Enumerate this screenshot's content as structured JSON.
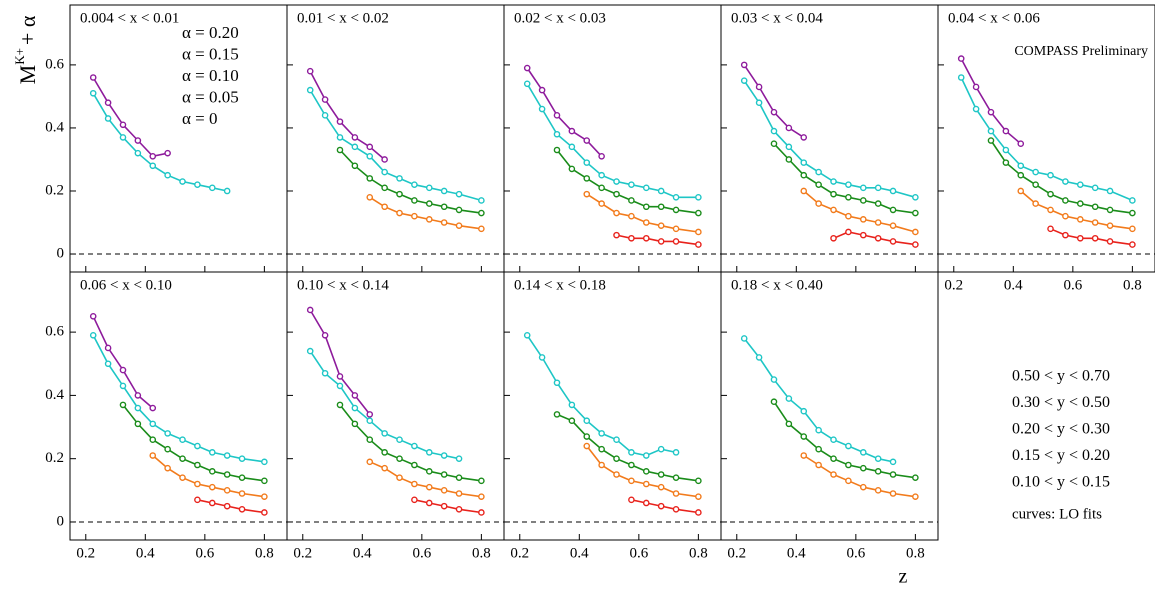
{
  "chart_data": {
    "type": "scatter",
    "ylabel": [
      "M",
      "K+",
      "+ α"
    ],
    "xlabel": "z",
    "note": "COMPASS Preliminary",
    "fit_note": "curves: LO fits",
    "x": [
      0.225,
      0.275,
      0.325,
      0.375,
      0.425,
      0.475,
      0.525,
      0.575,
      0.625,
      0.675,
      0.725,
      0.8
    ],
    "xlim": [
      0.147,
      0.876
    ],
    "ylim": [
      -0.057,
      0.79
    ],
    "xticks": [
      0.2,
      0.4,
      0.6,
      0.8
    ],
    "yticks": [
      0,
      0.2,
      0.4,
      0.6
    ],
    "reference_line": 0,
    "series": [
      {
        "name": "α = 0.20",
        "label": "0.50 < y < 0.70",
        "color": "#8e1b9c"
      },
      {
        "name": "α = 0.15",
        "label": "0.30 < y < 0.50",
        "color": "#1ec6c6"
      },
      {
        "name": "α = 0.10",
        "label": "0.20 < y < 0.30",
        "color": "#1a8c1a"
      },
      {
        "name": "α = 0.05",
        "label": "0.15 < y < 0.20",
        "color": "#f27b1c"
      },
      {
        "name": "α = 0",
        "label": "0.10 < y < 0.15",
        "color": "#e8221c"
      }
    ],
    "panels": [
      {
        "title": "0.004 < x < 0.01",
        "values": [
          [
            0.56,
            0.48,
            0.41,
            0.36,
            0.31,
            0.32,
            null,
            null,
            null,
            null,
            null,
            null
          ],
          [
            0.51,
            0.43,
            0.37,
            0.32,
            0.28,
            0.25,
            0.23,
            0.22,
            0.21,
            0.2,
            null,
            null
          ],
          [
            null,
            null,
            null,
            null,
            null,
            null,
            null,
            null,
            null,
            null,
            null,
            null
          ],
          [
            null,
            null,
            null,
            null,
            null,
            null,
            null,
            null,
            null,
            null,
            null,
            null
          ],
          [
            null,
            null,
            null,
            null,
            null,
            null,
            null,
            null,
            null,
            null,
            null,
            null
          ]
        ]
      },
      {
        "title": "0.01 < x < 0.02",
        "values": [
          [
            0.58,
            0.49,
            0.42,
            0.37,
            0.34,
            0.3,
            null,
            null,
            null,
            null,
            null,
            null
          ],
          [
            0.52,
            0.44,
            0.37,
            0.34,
            0.31,
            0.26,
            0.24,
            0.22,
            0.21,
            0.2,
            0.19,
            0.17
          ],
          [
            null,
            null,
            0.33,
            0.28,
            0.24,
            0.21,
            0.19,
            0.17,
            0.16,
            0.15,
            0.14,
            0.13
          ],
          [
            null,
            null,
            null,
            null,
            0.18,
            0.15,
            0.13,
            0.12,
            0.11,
            0.1,
            0.09,
            0.08
          ],
          [
            null,
            null,
            null,
            null,
            null,
            null,
            null,
            null,
            null,
            null,
            null,
            null
          ]
        ]
      },
      {
        "title": "0.02 < x < 0.03",
        "values": [
          [
            0.59,
            0.52,
            0.44,
            0.39,
            0.36,
            0.31,
            null,
            null,
            null,
            null,
            null,
            null
          ],
          [
            0.54,
            0.46,
            0.38,
            0.34,
            0.29,
            0.25,
            0.23,
            0.22,
            0.21,
            0.2,
            0.18,
            0.18
          ],
          [
            null,
            null,
            0.33,
            0.27,
            0.24,
            0.21,
            0.19,
            0.17,
            0.15,
            0.15,
            0.14,
            0.13
          ],
          [
            null,
            null,
            null,
            null,
            0.19,
            0.16,
            0.13,
            0.12,
            0.1,
            0.09,
            0.08,
            0.07
          ],
          [
            null,
            null,
            null,
            null,
            null,
            null,
            0.06,
            0.05,
            0.05,
            0.04,
            0.04,
            0.03
          ]
        ]
      },
      {
        "title": "0.03 < x < 0.04",
        "values": [
          [
            0.6,
            0.53,
            0.45,
            0.4,
            0.37,
            null,
            null,
            null,
            null,
            null,
            null,
            null
          ],
          [
            0.55,
            0.48,
            0.39,
            0.34,
            0.29,
            0.26,
            0.23,
            0.22,
            0.21,
            0.21,
            0.2,
            0.18
          ],
          [
            null,
            null,
            0.35,
            0.3,
            0.25,
            0.22,
            0.19,
            0.18,
            0.17,
            0.16,
            0.14,
            0.13
          ],
          [
            null,
            null,
            null,
            null,
            0.2,
            0.16,
            0.14,
            0.12,
            0.11,
            0.1,
            0.09,
            0.07
          ],
          [
            null,
            null,
            null,
            null,
            null,
            null,
            0.05,
            0.07,
            0.06,
            0.05,
            0.04,
            0.03
          ]
        ]
      },
      {
        "title": "0.04 < x < 0.06",
        "values": [
          [
            0.62,
            0.53,
            0.45,
            0.39,
            0.35,
            null,
            null,
            null,
            null,
            null,
            null,
            null
          ],
          [
            0.56,
            0.46,
            0.39,
            0.33,
            0.28,
            0.26,
            0.25,
            0.23,
            0.22,
            0.21,
            0.2,
            0.17
          ],
          [
            null,
            null,
            0.36,
            0.29,
            0.25,
            0.22,
            0.19,
            0.17,
            0.16,
            0.15,
            0.14,
            0.13
          ],
          [
            null,
            null,
            null,
            null,
            0.2,
            0.16,
            0.14,
            0.12,
            0.11,
            0.1,
            0.09,
            0.08
          ],
          [
            null,
            null,
            null,
            null,
            null,
            null,
            0.08,
            0.06,
            0.05,
            0.05,
            0.04,
            0.03
          ]
        ]
      },
      {
        "title": "0.06 < x < 0.10",
        "values": [
          [
            0.65,
            0.55,
            0.48,
            0.4,
            0.36,
            null,
            null,
            null,
            null,
            null,
            null,
            null
          ],
          [
            0.59,
            0.5,
            0.43,
            0.36,
            0.31,
            0.28,
            0.26,
            0.24,
            0.22,
            0.21,
            0.2,
            0.19
          ],
          [
            null,
            null,
            0.37,
            0.31,
            0.26,
            0.23,
            0.2,
            0.18,
            0.16,
            0.15,
            0.14,
            0.13
          ],
          [
            null,
            null,
            null,
            null,
            0.21,
            0.17,
            0.14,
            0.12,
            0.11,
            0.1,
            0.09,
            0.08
          ],
          [
            null,
            null,
            null,
            null,
            null,
            null,
            null,
            0.07,
            0.06,
            0.05,
            0.04,
            0.03
          ]
        ]
      },
      {
        "title": "0.10 < x < 0.14",
        "values": [
          [
            0.67,
            0.59,
            0.46,
            0.4,
            0.34,
            null,
            null,
            null,
            null,
            null,
            null,
            null
          ],
          [
            0.54,
            0.47,
            0.43,
            0.36,
            0.32,
            0.28,
            0.26,
            0.24,
            0.22,
            0.21,
            0.2,
            null
          ],
          [
            null,
            null,
            0.37,
            0.31,
            0.26,
            0.22,
            0.2,
            0.18,
            0.16,
            0.15,
            0.14,
            0.13
          ],
          [
            null,
            null,
            null,
            null,
            0.19,
            0.17,
            0.14,
            0.12,
            0.11,
            0.1,
            0.09,
            0.08
          ],
          [
            null,
            null,
            null,
            null,
            null,
            null,
            null,
            0.07,
            0.06,
            0.05,
            0.04,
            0.03
          ]
        ]
      },
      {
        "title": "0.14 < x < 0.18",
        "values": [
          [
            null,
            null,
            null,
            null,
            null,
            null,
            null,
            null,
            null,
            null,
            null,
            null
          ],
          [
            0.59,
            0.52,
            0.44,
            0.37,
            0.32,
            0.28,
            0.26,
            0.22,
            0.21,
            0.23,
            0.22,
            null
          ],
          [
            null,
            null,
            0.34,
            0.32,
            0.27,
            0.23,
            0.2,
            0.18,
            0.16,
            0.15,
            0.14,
            0.13
          ],
          [
            null,
            null,
            null,
            null,
            0.24,
            0.18,
            0.15,
            0.13,
            0.12,
            0.11,
            0.09,
            0.08
          ],
          [
            null,
            null,
            null,
            null,
            null,
            null,
            null,
            0.07,
            0.06,
            0.05,
            0.04,
            0.03
          ]
        ]
      },
      {
        "title": "0.18 < x < 0.40",
        "values": [
          [
            null,
            null,
            null,
            null,
            null,
            null,
            null,
            null,
            null,
            null,
            null,
            null
          ],
          [
            0.58,
            0.52,
            0.45,
            0.39,
            0.35,
            0.29,
            0.26,
            0.24,
            0.22,
            0.2,
            0.19,
            null
          ],
          [
            null,
            null,
            0.38,
            0.31,
            0.27,
            0.23,
            0.2,
            0.18,
            0.17,
            0.16,
            0.15,
            0.14
          ],
          [
            null,
            null,
            null,
            null,
            0.21,
            0.18,
            0.15,
            0.13,
            0.11,
            0.1,
            0.09,
            0.08
          ],
          [
            null,
            null,
            null,
            null,
            null,
            null,
            null,
            null,
            null,
            null,
            null,
            null
          ]
        ]
      }
    ]
  }
}
